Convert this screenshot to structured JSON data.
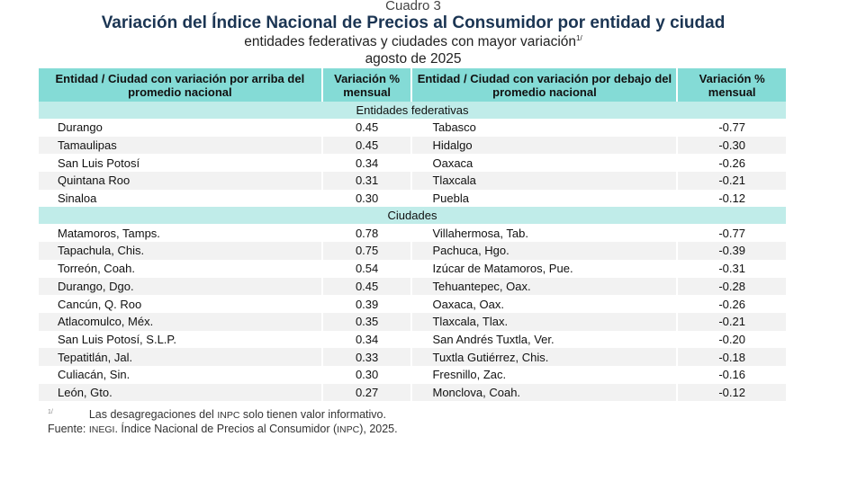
{
  "header": {
    "label": "Cuadro 3",
    "title": "Variación del Índice Nacional de Precios al Consumidor por entidad y ciudad",
    "subtitle": "entidades federativas y ciudades con mayor variación",
    "subtitle_note": "1/",
    "date": "agosto de 2025"
  },
  "columns": [
    "Entidad / Ciudad con variación por arriba del promedio nacional",
    "Variación % mensual",
    "Entidad / Ciudad con variación por debajo del promedio nacional",
    "Variación % mensual"
  ],
  "sections": [
    {
      "title": "Entidades federativas",
      "rows": [
        [
          "Durango",
          "0.45",
          "Tabasco",
          "-0.77"
        ],
        [
          "Tamaulipas",
          "0.45",
          "Hidalgo",
          "-0.30"
        ],
        [
          "San Luis Potosí",
          "0.34",
          "Oaxaca",
          "-0.26"
        ],
        [
          "Quintana Roo",
          "0.31",
          "Tlaxcala",
          "-0.21"
        ],
        [
          "Sinaloa",
          "0.30",
          "Puebla",
          "-0.12"
        ]
      ]
    },
    {
      "title": "Ciudades",
      "rows": [
        [
          "Matamoros, Tamps.",
          "0.78",
          "Villahermosa, Tab.",
          "-0.77"
        ],
        [
          "Tapachula, Chis.",
          "0.75",
          "Pachuca, Hgo.",
          "-0.39"
        ],
        [
          "Torreón, Coah.",
          "0.54",
          "Izúcar de Matamoros, Pue.",
          "-0.31"
        ],
        [
          "Durango, Dgo.",
          "0.45",
          "Tehuantepec, Oax.",
          "-0.28"
        ],
        [
          "Cancún, Q. Roo",
          "0.39",
          "Oaxaca, Oax.",
          "-0.26"
        ],
        [
          "Atlacomulco, Méx.",
          "0.35",
          "Tlaxcala, Tlax.",
          "-0.21"
        ],
        [
          "San Luis Potosí, S.L.P.",
          "0.34",
          "San Andrés Tuxtla, Ver.",
          "-0.20"
        ],
        [
          "Tepatitlán, Jal.",
          "0.33",
          "Tuxtla Gutiérrez, Chis.",
          "-0.18"
        ],
        [
          "Culiacán, Sin.",
          "0.30",
          "Fresnillo, Zac.",
          "-0.16"
        ],
        [
          "León, Gto.",
          "0.27",
          "Monclova, Coah.",
          "-0.12"
        ]
      ]
    }
  ],
  "notes": {
    "mark": "1/",
    "note": "Las desagregaciones del INPC solo tienen valor informativo.",
    "source_label": "Fuente:",
    "source": "INEGI. Índice Nacional de Precios al Consumidor (INPC), 2025."
  }
}
